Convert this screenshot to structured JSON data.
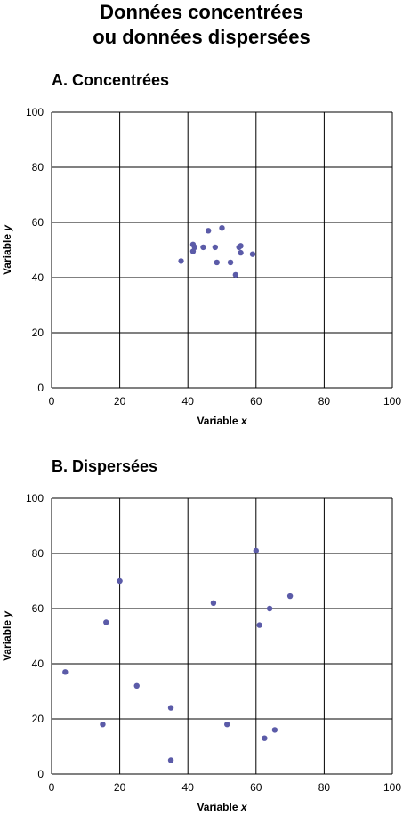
{
  "title": {
    "line1": "Données concentrées",
    "line2": "ou données dispersées"
  },
  "chart_data": [
    {
      "type": "scatter",
      "title": "A.  Concentrées",
      "xlabel": "Variable",
      "xlabel_var": "x",
      "ylabel": "Variable",
      "ylabel_var": "y",
      "xlim": [
        0,
        100
      ],
      "ylim": [
        0,
        100
      ],
      "xticks": [
        0,
        20,
        40,
        60,
        80,
        100
      ],
      "yticks": [
        0,
        20,
        40,
        60,
        80,
        100
      ],
      "grid": true,
      "color": "#5b5ba8",
      "points": [
        {
          "x": 38,
          "y": 46
        },
        {
          "x": 41.5,
          "y": 52
        },
        {
          "x": 42,
          "y": 51
        },
        {
          "x": 41.5,
          "y": 49.5
        },
        {
          "x": 44.5,
          "y": 51
        },
        {
          "x": 46,
          "y": 57
        },
        {
          "x": 48,
          "y": 51
        },
        {
          "x": 48.5,
          "y": 45.5
        },
        {
          "x": 50,
          "y": 58
        },
        {
          "x": 52.5,
          "y": 45.5
        },
        {
          "x": 54,
          "y": 41
        },
        {
          "x": 55,
          "y": 51
        },
        {
          "x": 55.5,
          "y": 51.5
        },
        {
          "x": 55.5,
          "y": 49
        },
        {
          "x": 59,
          "y": 48.5
        }
      ]
    },
    {
      "type": "scatter",
      "title": "B.  Dispersées",
      "xlabel": "Variable",
      "xlabel_var": "x",
      "ylabel": "Variable",
      "ylabel_var": "y",
      "xlim": [
        0,
        100
      ],
      "ylim": [
        0,
        100
      ],
      "xticks": [
        0,
        20,
        40,
        60,
        80,
        100
      ],
      "yticks": [
        0,
        20,
        40,
        60,
        80,
        100
      ],
      "grid": true,
      "color": "#5b5ba8",
      "points": [
        {
          "x": 4,
          "y": 37
        },
        {
          "x": 15,
          "y": 18
        },
        {
          "x": 16,
          "y": 55
        },
        {
          "x": 20,
          "y": 70
        },
        {
          "x": 25,
          "y": 32
        },
        {
          "x": 35,
          "y": 24
        },
        {
          "x": 35,
          "y": 5
        },
        {
          "x": 47.5,
          "y": 62
        },
        {
          "x": 51.5,
          "y": 18
        },
        {
          "x": 60,
          "y": 81
        },
        {
          "x": 61,
          "y": 54
        },
        {
          "x": 62.5,
          "y": 13
        },
        {
          "x": 64,
          "y": 60
        },
        {
          "x": 65.5,
          "y": 16
        },
        {
          "x": 70,
          "y": 64.5
        }
      ]
    }
  ]
}
